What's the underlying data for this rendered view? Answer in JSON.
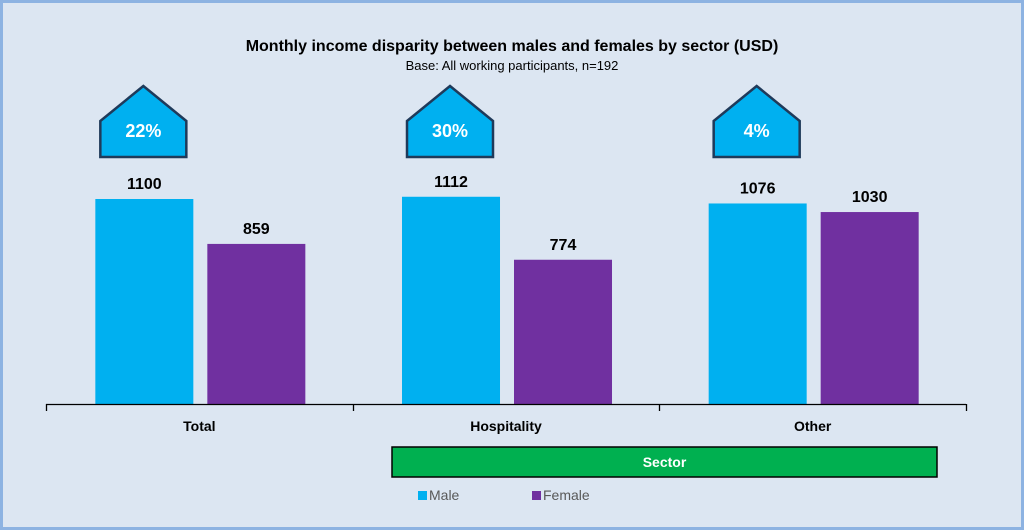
{
  "chart_data": {
    "type": "bar",
    "title": "Monthly income disparity between males and females by sector (USD)",
    "subtitle": "Base: All working participants, n=192",
    "categories": [
      "Total",
      "Hospitality",
      "Other"
    ],
    "series": [
      {
        "name": "Male",
        "color": "#00b0f0",
        "values": [
          1100,
          1112,
          1076
        ]
      },
      {
        "name": "Female",
        "color": "#7030a0",
        "values": [
          859,
          774,
          1030
        ]
      }
    ],
    "disparity_labels": [
      "22%",
      "30%",
      "4%"
    ],
    "disparity_color": "#00b0f0",
    "disparity_border_color": "#1f3a5a",
    "xlabel": "Sector",
    "xlabel_box_color": "#00b050",
    "ylabel": "",
    "ylim": [
      0,
      1100
    ],
    "grid": false,
    "legend_position": "bottom"
  }
}
